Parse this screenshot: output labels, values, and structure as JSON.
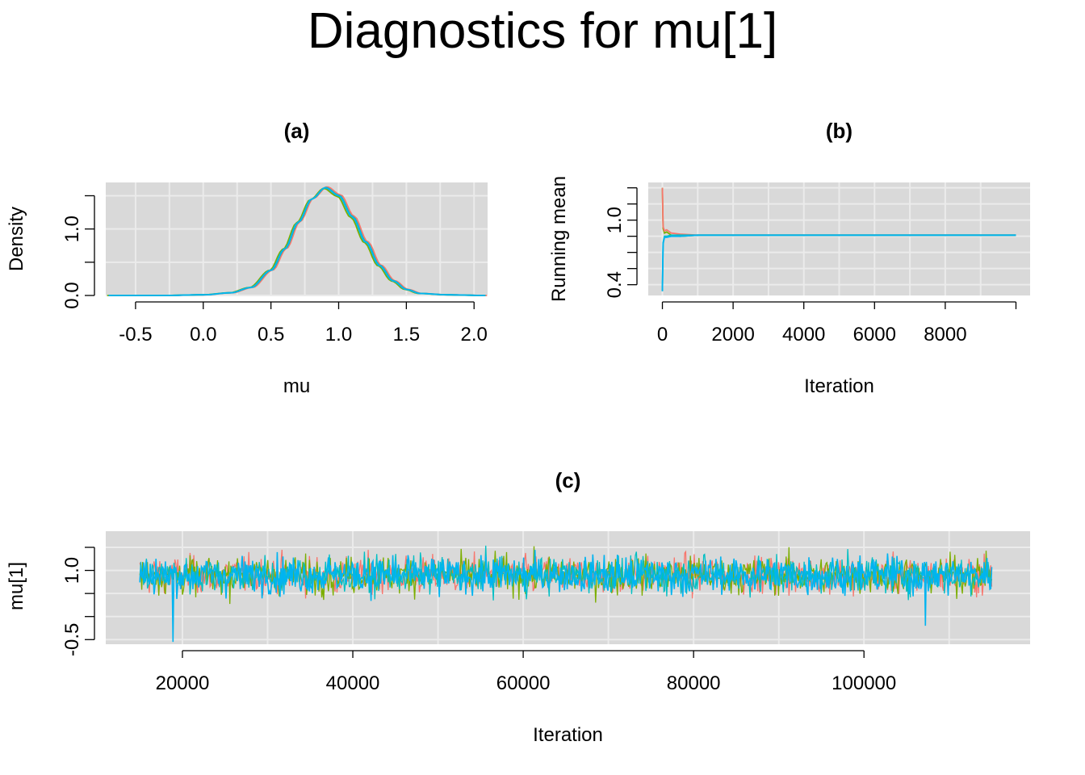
{
  "title": "Diagnostics for mu[1]",
  "colors": {
    "panel_bg": "#d9d9d9",
    "grid": "#ebebeb",
    "chain_1": "#f8766d",
    "chain_2": "#7cae00",
    "chain_3": "#00bfc4",
    "chain_4": "#00b4f0"
  },
  "chart_data": [
    {
      "id": "a",
      "type": "line",
      "title": "(a)",
      "xlabel": "mu",
      "ylabel": "Density",
      "xlim": [
        -0.72,
        2.1
      ],
      "ylim": [
        0,
        1.7
      ],
      "xticks": [
        "-0.5",
        "0.0",
        "0.5",
        "1.0",
        "1.5",
        "2.0"
      ],
      "yticks": [
        "0.0",
        "1.0"
      ],
      "grid": true,
      "series": [
        {
          "x": [
            -0.7,
            -0.3,
            0.0,
            0.2,
            0.35,
            0.5,
            0.6,
            0.7,
            0.8,
            0.9,
            1.0,
            1.1,
            1.2,
            1.3,
            1.4,
            1.5,
            1.6,
            1.8,
            2.08
          ],
          "values": [
            0.0,
            0.0,
            0.01,
            0.04,
            0.12,
            0.38,
            0.7,
            1.1,
            1.45,
            1.62,
            1.5,
            1.18,
            0.8,
            0.45,
            0.22,
            0.09,
            0.03,
            0.01,
            0.0
          ]
        }
      ]
    },
    {
      "id": "b",
      "type": "line",
      "title": "(b)",
      "xlabel": "Iteration",
      "ylabel": "Running mean",
      "xlim": [
        -400,
        10400
      ],
      "ylim": [
        0.3,
        1.35
      ],
      "xticks": [
        "0",
        "2000",
        "4000",
        "6000",
        "8000"
      ],
      "yticks": [
        "0.4",
        "1.0"
      ],
      "grid": true,
      "series": [
        {
          "x": [
            0,
            20,
            60,
            120,
            250,
            500,
            1000,
            3000,
            6000,
            10000
          ],
          "values": [
            1.3,
            0.92,
            0.88,
            0.89,
            0.86,
            0.85,
            0.86,
            0.86,
            0.86,
            0.86
          ]
        },
        {
          "x": [
            0,
            20,
            60,
            120,
            250,
            500,
            1000,
            3000,
            6000,
            10000
          ],
          "values": [
            0.34,
            0.78,
            0.84,
            0.84,
            0.85,
            0.85,
            0.86,
            0.86,
            0.86,
            0.86
          ]
        }
      ]
    },
    {
      "id": "c",
      "type": "line",
      "title": "(c)",
      "xlabel": "Iteration",
      "ylabel": "mu[1]",
      "xlim": [
        11000,
        119500
      ],
      "ylim": [
        -0.6,
        1.85
      ],
      "xticks": [
        "20000",
        "40000",
        "60000",
        "80000",
        "100000"
      ],
      "yticks": [
        "-0.5",
        "1.0"
      ],
      "grid": true,
      "x_start": 15000,
      "x_end": 115000,
      "center": 0.9,
      "spread": [
        0.2,
        1.6
      ]
    }
  ]
}
